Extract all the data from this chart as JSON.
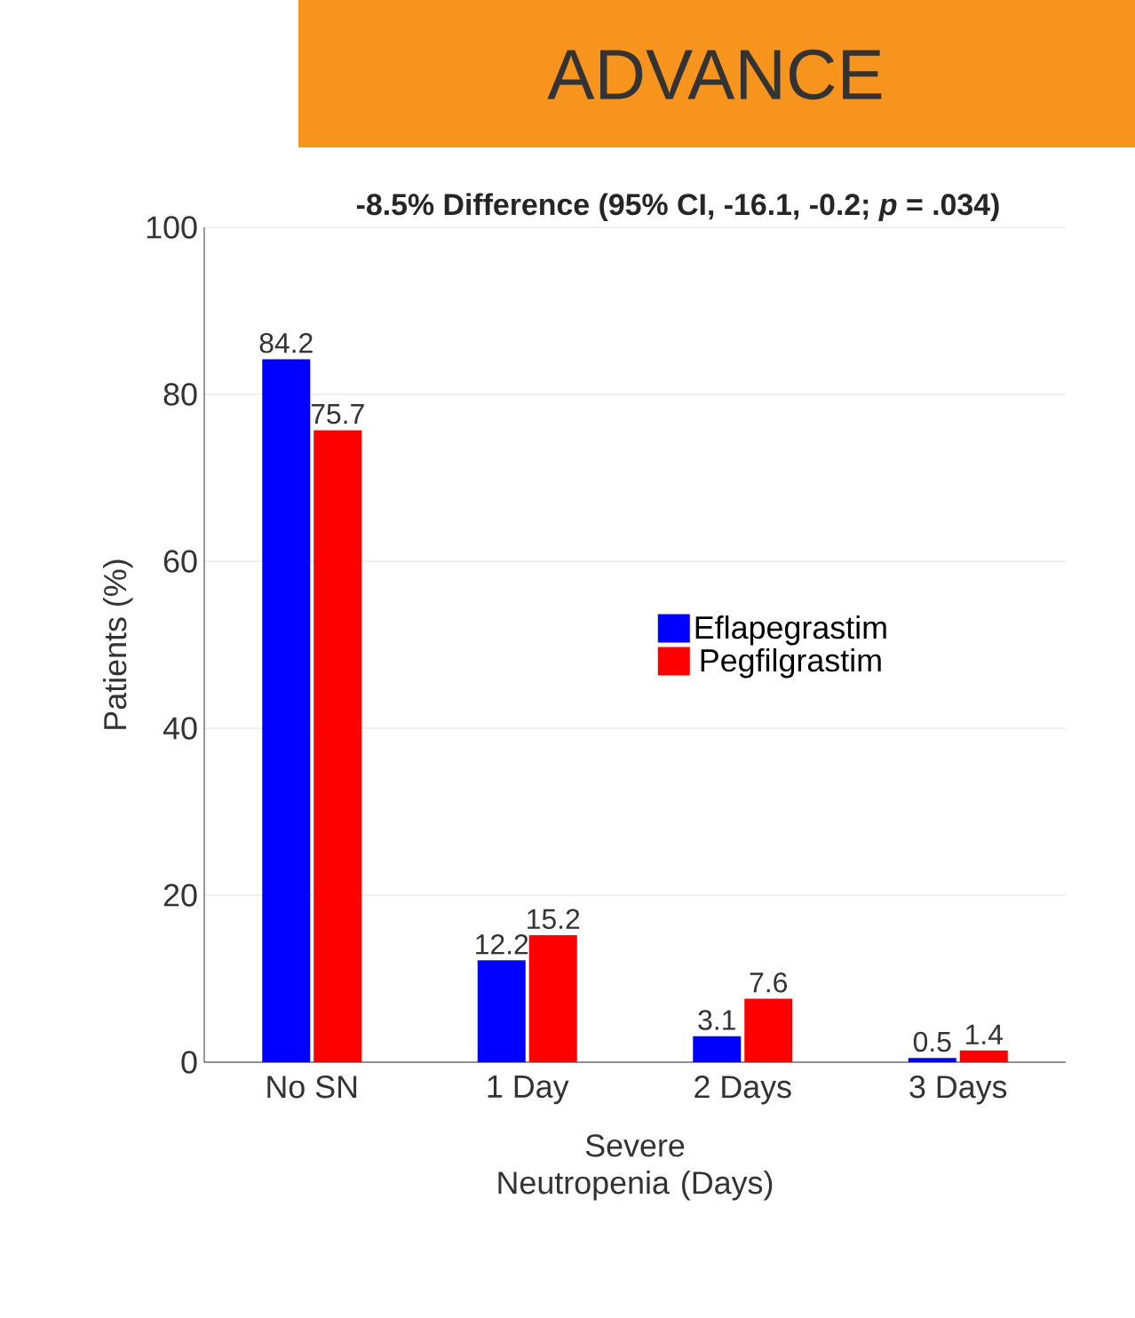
{
  "chart_data": {
    "type": "bar",
    "title": "ADVANCE",
    "xlabel": "Severe Neutropenia (Days)",
    "ylabel": "Patients (%)",
    "annotations": [
      "-8.5% Difference  (95% CI, -16.1, -0.2; *p* = .034)"
    ],
    "categories": [
      "No SN",
      "1 Day",
      "2 Days",
      "3 Days"
    ],
    "series": [
      {
        "name": "Eflapegrastim",
        "color": "#0000ff",
        "values": [
          84.2,
          12.2,
          3.1,
          0.5
        ]
      },
      {
        "name": "Pegfilgrastim",
        "color": "#ff0000",
        "values": [
          75.7,
          15.2,
          7.6,
          1.4
        ]
      }
    ],
    "ylim": [
      0,
      100
    ],
    "yticks": [
      0,
      20,
      40,
      60,
      80,
      100
    ],
    "grid": "y",
    "legend": "right",
    "data_labels": true
  }
}
